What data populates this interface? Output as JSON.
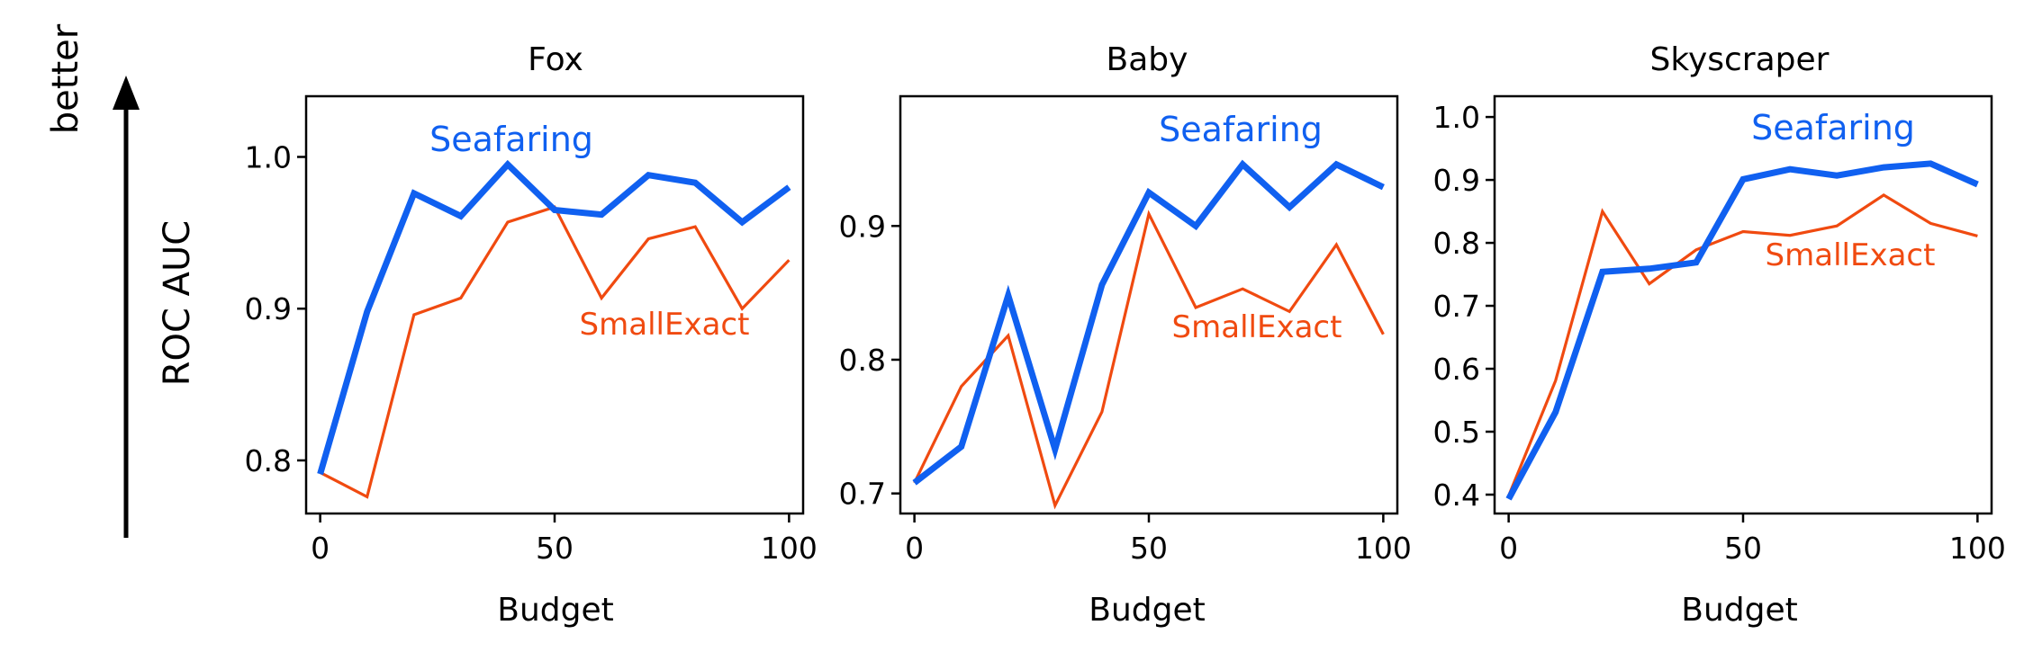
{
  "figure": {
    "ylabel": "ROC AUC",
    "arrow_label": "better"
  },
  "colors": {
    "seafaring": "#1060f0",
    "smallexact": "#f04a10",
    "axis": "#000000"
  },
  "chart_data": [
    {
      "type": "line",
      "title": "Fox",
      "xlabel": "Budget",
      "ylabel": "ROC AUC",
      "xlim": [
        -3,
        103
      ],
      "ylim": [
        0.765,
        1.04
      ],
      "xticks": [
        0,
        50,
        100
      ],
      "yticks": [
        0.8,
        0.9,
        1.0
      ],
      "ytick_labels": [
        "0.8",
        "0.9",
        "1.0"
      ],
      "x": [
        0,
        10,
        20,
        30,
        40,
        50,
        60,
        70,
        80,
        90,
        100
      ],
      "series": [
        {
          "name": "Seafaring",
          "values": [
            0.791,
            0.898,
            0.976,
            0.961,
            0.995,
            0.965,
            0.962,
            0.988,
            0.983,
            0.957,
            0.98
          ]
        },
        {
          "name": "SmallExact",
          "values": [
            0.792,
            0.776,
            0.896,
            0.907,
            0.957,
            0.967,
            0.907,
            0.946,
            0.954,
            0.9,
            0.932
          ]
        }
      ],
      "annotations": {
        "seafaring": "Seafaring",
        "smallexact": "SmallExact"
      }
    },
    {
      "type": "line",
      "title": "Baby",
      "xlabel": "Budget",
      "ylabel": "ROC AUC",
      "xlim": [
        -3,
        103
      ],
      "ylim": [
        0.685,
        0.997
      ],
      "xticks": [
        0,
        50,
        100
      ],
      "yticks": [
        0.7,
        0.8,
        0.9
      ],
      "ytick_labels": [
        "0.7",
        "0.8",
        "0.9"
      ],
      "x": [
        0,
        10,
        20,
        30,
        40,
        50,
        60,
        70,
        80,
        90,
        100
      ],
      "series": [
        {
          "name": "Seafaring",
          "values": [
            0.708,
            0.735,
            0.848,
            0.733,
            0.856,
            0.925,
            0.9,
            0.946,
            0.914,
            0.946,
            0.929
          ]
        },
        {
          "name": "SmallExact",
          "values": [
            0.708,
            0.78,
            0.818,
            0.691,
            0.761,
            0.909,
            0.839,
            0.853,
            0.836,
            0.886,
            0.819
          ]
        }
      ],
      "annotations": {
        "seafaring": "Seafaring",
        "smallexact": "SmallExact"
      }
    },
    {
      "type": "line",
      "title": "Skyscraper",
      "xlabel": "Budget",
      "ylabel": "ROC AUC",
      "xlim": [
        -3,
        103
      ],
      "ylim": [
        0.37,
        1.033
      ],
      "xticks": [
        0,
        50,
        100
      ],
      "yticks": [
        0.4,
        0.5,
        0.6,
        0.7,
        0.8,
        0.9,
        1.0
      ],
      "ytick_labels": [
        "0.4",
        "0.5",
        "0.6",
        "0.7",
        "0.8",
        "0.9",
        "1.0"
      ],
      "x": [
        0,
        10,
        20,
        30,
        40,
        50,
        60,
        70,
        80,
        90,
        100
      ],
      "series": [
        {
          "name": "Seafaring",
          "values": [
            0.393,
            0.531,
            0.754,
            0.759,
            0.769,
            0.901,
            0.917,
            0.907,
            0.92,
            0.926,
            0.893
          ]
        },
        {
          "name": "SmallExact",
          "values": [
            0.398,
            0.581,
            0.85,
            0.735,
            0.789,
            0.818,
            0.812,
            0.827,
            0.876,
            0.831,
            0.811
          ]
        }
      ],
      "annotations": {
        "seafaring": "Seafaring",
        "smallexact": "SmallExact"
      }
    }
  ]
}
